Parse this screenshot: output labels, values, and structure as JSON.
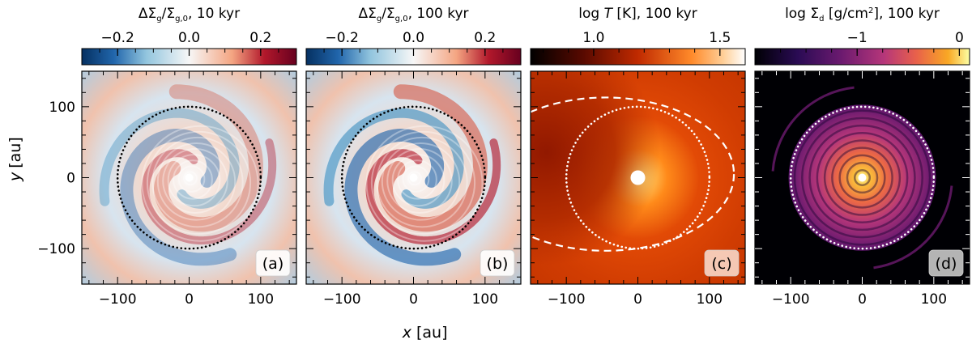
{
  "figure": {
    "xlabel_var": "x",
    "xlabel_unit": "[au]",
    "ylabel_var": "y",
    "ylabel_unit": "[au]"
  },
  "chart_data": [
    {
      "type": "heatmap",
      "panel_label": "(a)",
      "colorbar": {
        "title": "ΔΣ_g/Σ_g,0, 10 kyr",
        "ticks": [
          -0.2,
          0.0,
          0.2
        ],
        "tick_labels": [
          "−0.2",
          "0.0",
          "0.2"
        ],
        "range": [
          -0.3,
          0.3
        ],
        "colormap": "diverging blue–white–red",
        "colors": [
          "#2166ac",
          "#f7f7f7",
          "#67001f"
        ]
      },
      "xlim": [
        -150,
        150
      ],
      "ylim": [
        -150,
        150
      ],
      "xticks": [
        -100,
        0,
        100
      ],
      "yticks": [
        -100,
        0,
        100
      ],
      "circle_radius_au": 100,
      "circle_style": "dotted black"
    },
    {
      "type": "heatmap",
      "panel_label": "(b)",
      "colorbar": {
        "title": "ΔΣ_g/Σ_g,0, 100 kyr",
        "ticks": [
          -0.2,
          0.0,
          0.2
        ],
        "tick_labels": [
          "−0.2",
          "0.0",
          "0.2"
        ],
        "range": [
          -0.3,
          0.3
        ],
        "colormap": "diverging blue–white–red",
        "colors": [
          "#2166ac",
          "#f7f7f7",
          "#67001f"
        ]
      },
      "xlim": [
        -150,
        150
      ],
      "ylim": [
        -150,
        150
      ],
      "xticks": [
        -100,
        0,
        100
      ],
      "yticks": [
        -100,
        0,
        100
      ],
      "circle_radius_au": 100,
      "circle_style": "dotted black"
    },
    {
      "type": "heatmap",
      "panel_label": "(c)",
      "colorbar": {
        "title": "log T [K], 100 kyr",
        "ticks": [
          1.0,
          1.5
        ],
        "tick_labels": [
          "1.0",
          "1.5"
        ],
        "range": [
          0.75,
          1.6
        ],
        "colormap": "gist_heat",
        "colors": [
          "#000000",
          "#d63a00",
          "#ffffff"
        ]
      },
      "xlim": [
        -150,
        150
      ],
      "ylim": [
        -150,
        150
      ],
      "xticks": [
        -100,
        0,
        100
      ],
      "yticks": [
        -100,
        0,
        100
      ],
      "circle_radius_au": 100,
      "circle_style": "dotted white",
      "extra_curve": "dashed white ellipse"
    },
    {
      "type": "heatmap",
      "panel_label": "(d)",
      "colorbar": {
        "title": "log Σ_d [g/cm²], 100 kyr",
        "ticks": [
          -1,
          0
        ],
        "tick_labels": [
          "−1",
          "0"
        ],
        "range": [
          -2,
          0.1
        ],
        "colormap": "inferno",
        "colors": [
          "#000004",
          "#b5367a",
          "#fcffa4"
        ]
      },
      "xlim": [
        -150,
        150
      ],
      "ylim": [
        -150,
        150
      ],
      "xticks": [
        -100,
        0,
        100
      ],
      "yticks": [
        -100,
        0,
        100
      ],
      "circle_radius_au": 100,
      "circle_style": "dotted white"
    }
  ]
}
